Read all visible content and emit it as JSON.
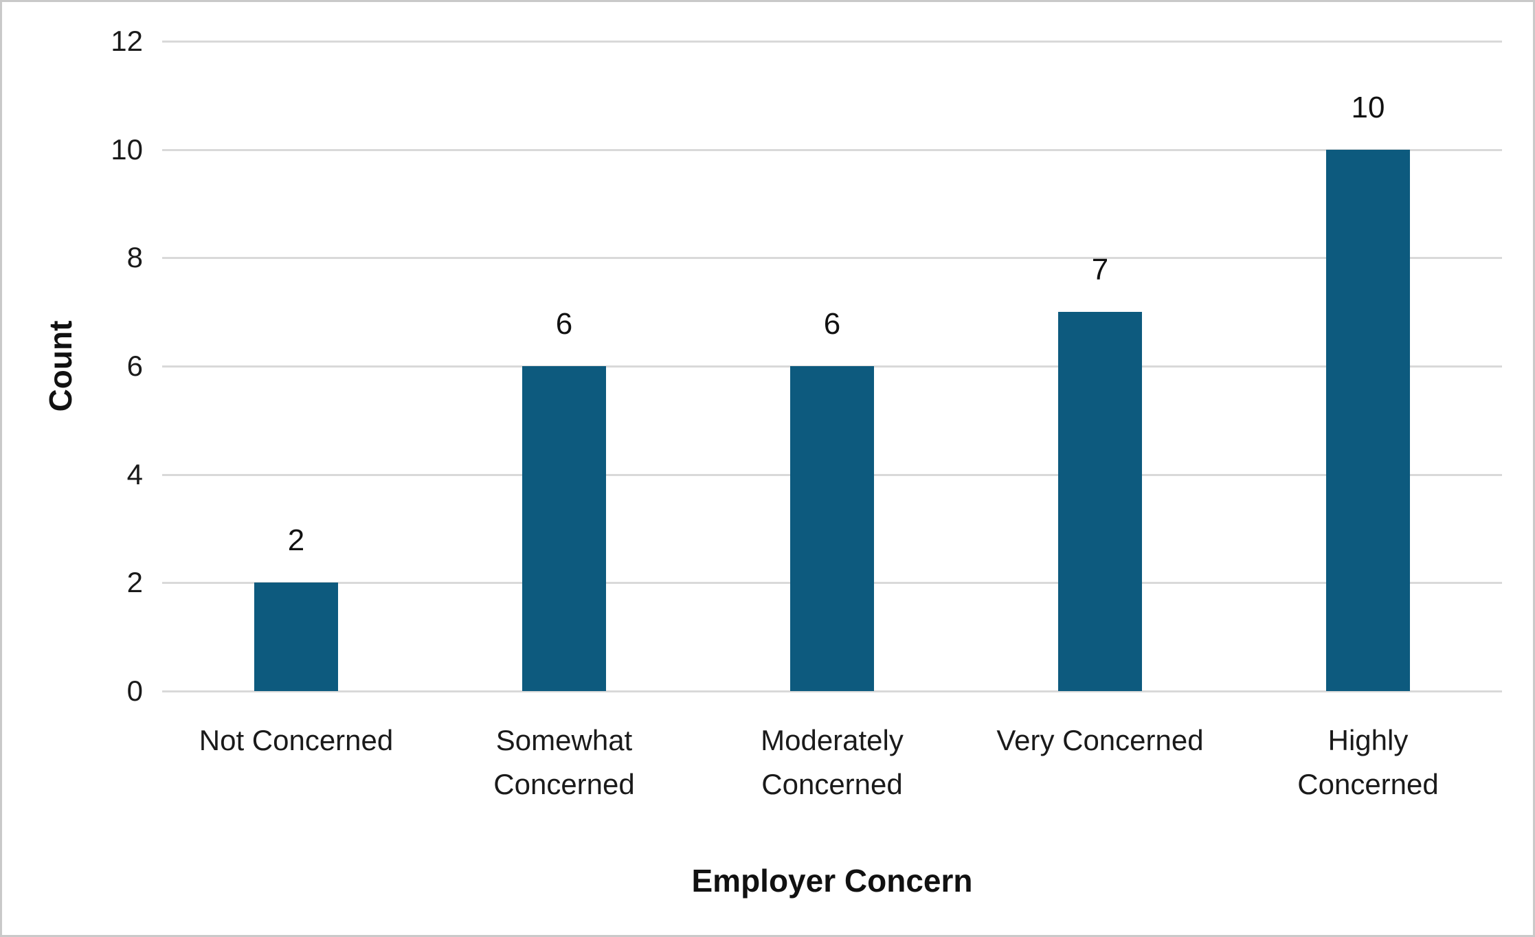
{
  "chart_data": {
    "type": "bar",
    "title": "",
    "categories": [
      "Not Concerned",
      "Somewhat\nConcerned",
      "Moderately\nConcerned",
      "Very Concerned",
      "Highly\nConcerned"
    ],
    "values": [
      2,
      6,
      6,
      7,
      10
    ],
    "data_labels": [
      "2",
      "6",
      "6",
      "7",
      "10"
    ],
    "xlabel": "Employer Concern",
    "ylabel": "Count",
    "ylim": [
      0,
      12
    ],
    "yticks": [
      0,
      2,
      4,
      6,
      8,
      10,
      12
    ],
    "grid": "horizontal",
    "legend_position": "none",
    "colors": {
      "bar_fill": "#0d5a7e",
      "gridline": "#d9d9d9",
      "axis_line": "#d9d9d9",
      "text": "#1a1a1a",
      "background": "#ffffff",
      "canvas_border": "#c9c9c9"
    }
  }
}
